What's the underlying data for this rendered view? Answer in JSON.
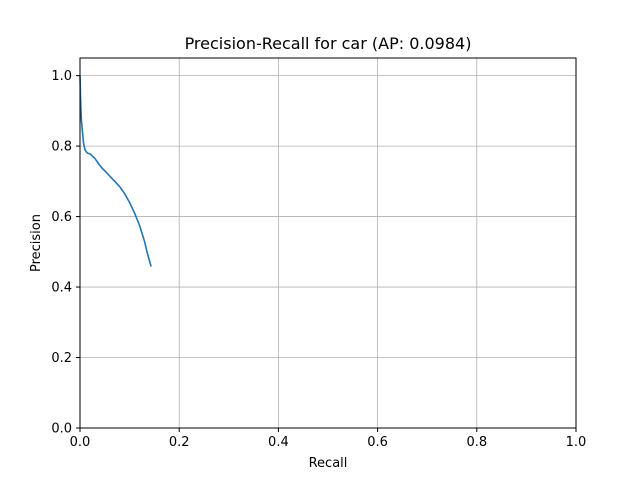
{
  "chart_data": {
    "type": "line",
    "title": "Precision-Recall for car (AP: 0.0984)",
    "xlabel": "Recall",
    "ylabel": "Precision",
    "xlim": [
      0.0,
      1.0
    ],
    "ylim": [
      0.0,
      1.05
    ],
    "grid": true,
    "xticks": [
      0.0,
      0.2,
      0.4,
      0.6,
      0.8,
      1.0
    ],
    "yticks": [
      0.0,
      0.2,
      0.4,
      0.6,
      0.8,
      1.0
    ],
    "xtick_labels": [
      "0.0",
      "0.2",
      "0.4",
      "0.6",
      "0.8",
      "1.0"
    ],
    "ytick_labels": [
      "0.0",
      "0.2",
      "0.4",
      "0.6",
      "0.8",
      "1.0"
    ],
    "series": [
      {
        "color": "#1f77b4",
        "x": [
          0.0,
          0.001,
          0.002,
          0.003,
          0.005,
          0.007,
          0.01,
          0.012,
          0.015,
          0.02,
          0.025,
          0.03,
          0.035,
          0.04,
          0.045,
          0.05,
          0.06,
          0.07,
          0.08,
          0.09,
          0.1,
          0.11,
          0.12,
          0.13,
          0.135,
          0.14,
          0.143
        ],
        "y": [
          1.0,
          0.94,
          0.9,
          0.87,
          0.84,
          0.81,
          0.79,
          0.785,
          0.78,
          0.778,
          0.772,
          0.765,
          0.755,
          0.745,
          0.737,
          0.73,
          0.715,
          0.7,
          0.685,
          0.665,
          0.64,
          0.61,
          0.575,
          0.53,
          0.5,
          0.475,
          0.46
        ]
      }
    ]
  }
}
